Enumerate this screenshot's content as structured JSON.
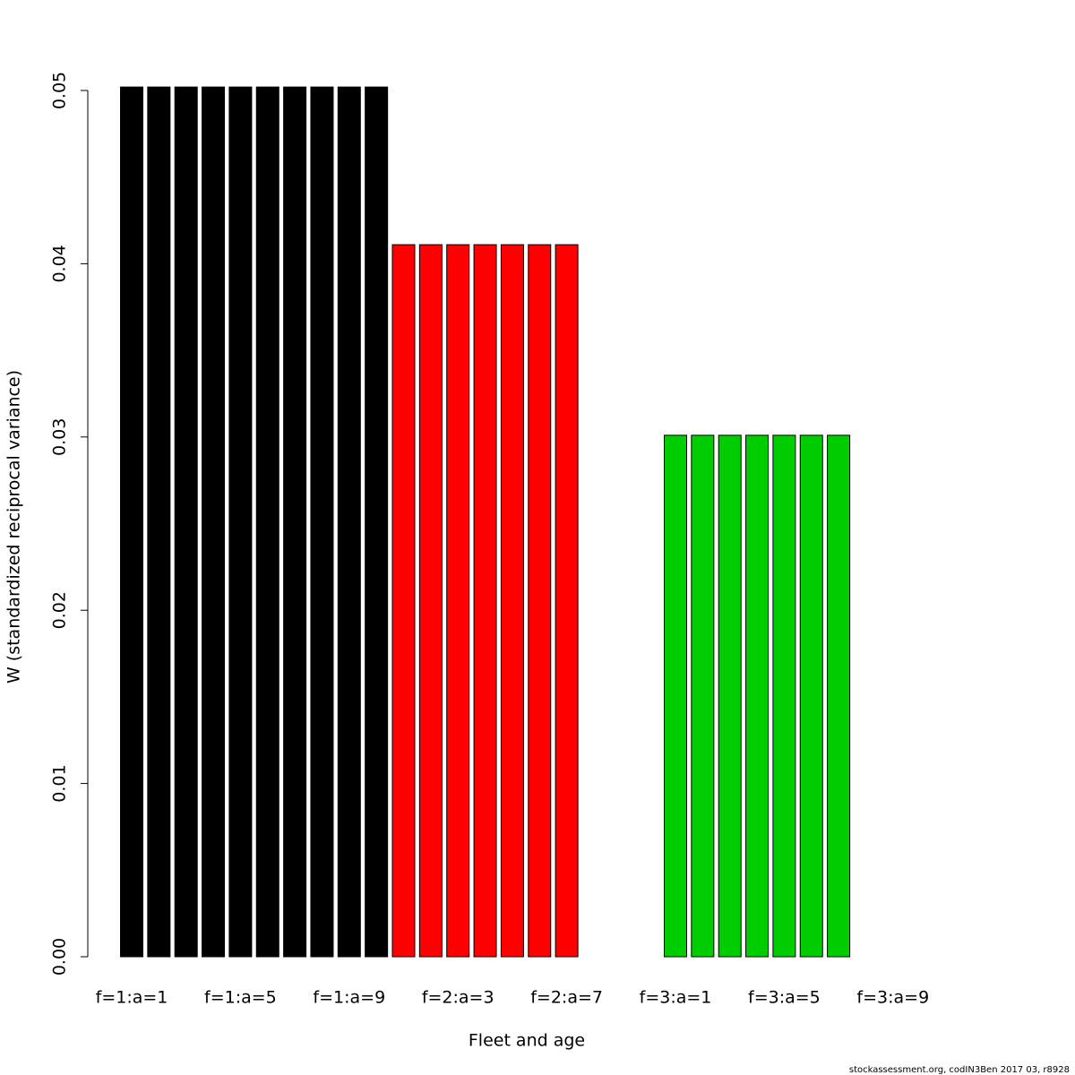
{
  "chart_data": {
    "type": "bar",
    "x_label": "Fleet and age",
    "y_label": "W (standardized reciprocal variance)",
    "footnote": "stockassessment.org, codIN3Ben 2017 03, r8928",
    "categories": [
      "f=1:a=1",
      null,
      null,
      null,
      "f=1:a=5",
      null,
      null,
      null,
      "f=1:a=9",
      null,
      null,
      null,
      "f=2:a=3",
      null,
      null,
      null,
      "f=2:a=7",
      null,
      null,
      null,
      "f=3:a=1",
      null,
      null,
      null,
      "f=3:a=5",
      null,
      null,
      null,
      "f=3:a=9",
      null
    ],
    "values": [
      0.0502,
      0.0502,
      0.0502,
      0.0502,
      0.0502,
      0.0502,
      0.0502,
      0.0502,
      0.0502,
      0.0502,
      0.0411,
      0.0411,
      0.0411,
      0.0411,
      0.0411,
      0.0411,
      0.0411,
      0,
      0,
      0,
      0.0301,
      0.0301,
      0.0301,
      0.0301,
      0.0301,
      0.0301,
      0.0301,
      0,
      0,
      0
    ],
    "colors": [
      "#000000",
      "#000000",
      "#000000",
      "#000000",
      "#000000",
      "#000000",
      "#000000",
      "#000000",
      "#000000",
      "#000000",
      "#ff0000",
      "#ff0000",
      "#ff0000",
      "#ff0000",
      "#ff0000",
      "#ff0000",
      "#ff0000",
      "#ff0000",
      "#ff0000",
      "#ff0000",
      "#00cd00",
      "#00cd00",
      "#00cd00",
      "#00cd00",
      "#00cd00",
      "#00cd00",
      "#00cd00",
      "#00cd00",
      "#00cd00",
      "#00cd00"
    ],
    "ylim": [
      0,
      0.05
    ],
    "yticks": [
      {
        "value": 0,
        "label": "0.00"
      },
      0.01,
      0.02,
      0.03,
      0.04,
      0.05
    ]
  }
}
